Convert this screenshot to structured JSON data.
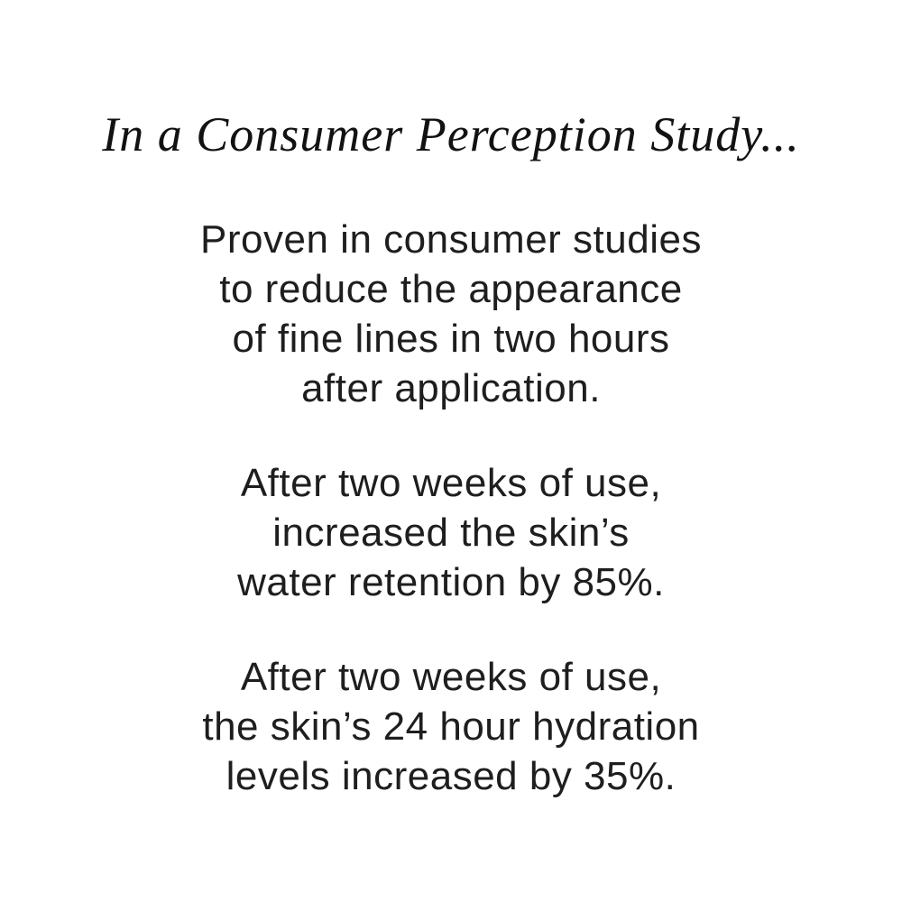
{
  "page": {
    "background_color": "#ffffff",
    "text_color": "#1e1e1e",
    "headline_color": "#121212"
  },
  "headline": {
    "text": "In a Consumer Perception Study..."
  },
  "paragraphs": [
    {
      "lines": [
        "Proven in consumer studies",
        "to reduce the appearance",
        "of fine lines in two hours",
        "after application."
      ]
    },
    {
      "lines": [
        "After two weeks of use,",
        "increased the skin’s",
        "water retention by 85%."
      ]
    },
    {
      "lines": [
        "After two weeks of use,",
        "the skin’s 24 hour hydration",
        "levels increased by 35%."
      ]
    }
  ]
}
